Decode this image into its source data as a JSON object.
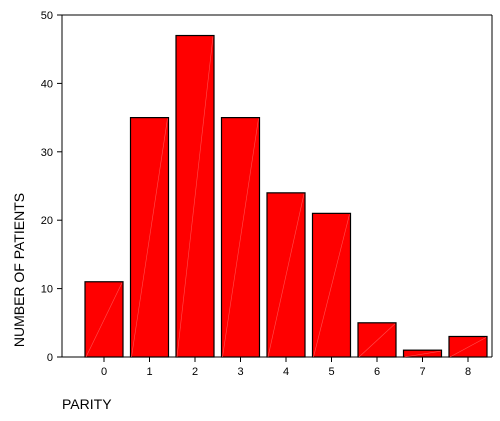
{
  "chart_data": {
    "type": "bar",
    "categories": [
      "0",
      "1",
      "2",
      "3",
      "4",
      "5",
      "6",
      "7",
      "8"
    ],
    "values": [
      11,
      35,
      47,
      35,
      24,
      21,
      5,
      1,
      3
    ],
    "xlabel": "PARITY",
    "ylabel": "NUMBER OF PATIENTS",
    "ylim": [
      0,
      50
    ],
    "yticks": [
      0,
      10,
      20,
      30,
      40,
      50
    ],
    "grid": false,
    "bar_color": "#ff0000",
    "bar_edge_color": "#000000"
  }
}
